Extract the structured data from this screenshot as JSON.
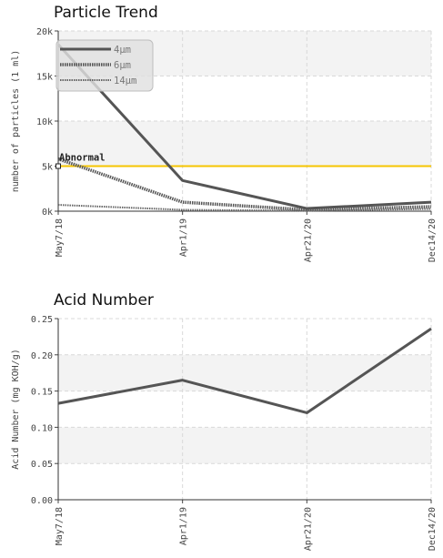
{
  "chart_data": [
    {
      "type": "line",
      "title": "Particle Trend",
      "ylabel": "number of particles (1 ml)",
      "xlabel": "",
      "x": [
        "May7/18",
        "Apr1/19",
        "Apr21/20",
        "Dec14/20"
      ],
      "y_ticks": [
        "0k",
        "5k",
        "10k",
        "15k",
        "20k"
      ],
      "ylim": [
        0,
        20000
      ],
      "grid": true,
      "legend": "top-left",
      "series": [
        {
          "name": "4µm",
          "values": [
            18500,
            3400,
            300,
            1000
          ],
          "color": "#555555",
          "style": "solid"
        },
        {
          "name": "6µm",
          "values": [
            5800,
            1000,
            150,
            500
          ],
          "color": "#555555",
          "style": "dotted"
        },
        {
          "name": "14µm",
          "values": [
            700,
            150,
            50,
            250
          ],
          "color": "#666666",
          "style": "dotted-thin"
        }
      ],
      "annotations": [
        {
          "label": "Abnormal",
          "y": 5000,
          "color": "#f5c400",
          "marker_x": "May7/18"
        }
      ]
    },
    {
      "type": "line",
      "title": "Acid Number",
      "ylabel": "Acid Number (mg KOH/g)",
      "xlabel": "",
      "x": [
        "May7/18",
        "Apr1/19",
        "Apr21/20",
        "Dec14/20"
      ],
      "y_ticks": [
        "0.00",
        "0.05",
        "0.10",
        "0.15",
        "0.20",
        "0.25"
      ],
      "ylim": [
        0,
        0.25
      ],
      "grid": true,
      "series": [
        {
          "values": [
            0.133,
            0.165,
            0.12,
            0.236
          ],
          "color": "#555555",
          "style": "solid"
        }
      ]
    }
  ]
}
